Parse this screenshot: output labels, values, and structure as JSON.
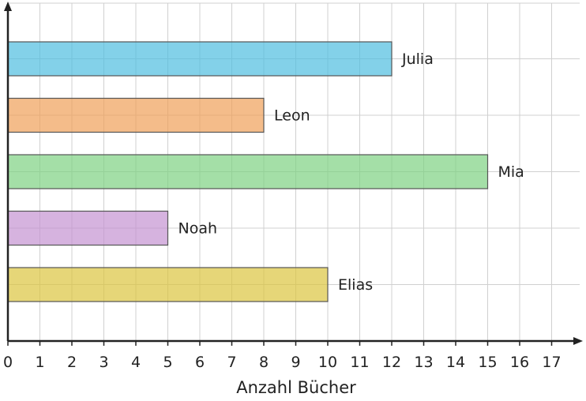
{
  "chart_data": {
    "type": "bar",
    "orientation": "horizontal",
    "categories": [
      "Julia",
      "Leon",
      "Mia",
      "Noah",
      "Elias"
    ],
    "values": [
      12,
      8,
      15,
      5,
      10
    ],
    "colors": [
      "#4fbde0",
      "#f0a058",
      "#7dd282",
      "#c593d2",
      "#dcc43e"
    ],
    "xlabel": "Anzahl Bücher",
    "ylabel": "",
    "xlim": [
      0,
      17
    ],
    "xticks": [
      "0",
      "1",
      "2",
      "3",
      "4",
      "5",
      "6",
      "7",
      "8",
      "9",
      "10",
      "11",
      "12",
      "13",
      "14",
      "15",
      "16",
      "17"
    ],
    "grid": true,
    "labels_position": "right-of-bar"
  }
}
